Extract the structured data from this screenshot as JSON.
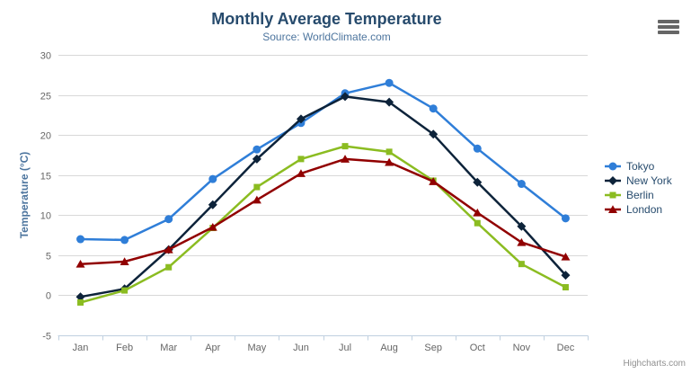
{
  "chart_data": {
    "type": "line",
    "title": "Monthly Average Temperature",
    "subtitle": "Source: WorldClimate.com",
    "categories": [
      "Jan",
      "Feb",
      "Mar",
      "Apr",
      "May",
      "Jun",
      "Jul",
      "Aug",
      "Sep",
      "Oct",
      "Nov",
      "Dec"
    ],
    "xlabel": "",
    "ylabel": "Temperature (°C)",
    "ylim": [
      -5,
      30
    ],
    "ytick_step": 5,
    "grid": "horizontal",
    "legend_position": "right-middle",
    "series": [
      {
        "name": "Tokyo",
        "color": "#2f7ed8",
        "marker": "circle",
        "values": [
          7.0,
          6.9,
          9.5,
          14.5,
          18.2,
          21.5,
          25.2,
          26.5,
          23.3,
          18.3,
          13.9,
          9.6
        ]
      },
      {
        "name": "New York",
        "color": "#0d233a",
        "marker": "diamond",
        "values": [
          -0.2,
          0.8,
          5.7,
          11.3,
          17.0,
          22.0,
          24.8,
          24.1,
          20.1,
          14.1,
          8.6,
          2.5
        ]
      },
      {
        "name": "Berlin",
        "color": "#8bbc21",
        "marker": "square",
        "values": [
          -0.9,
          0.6,
          3.5,
          8.4,
          13.5,
          17.0,
          18.6,
          17.9,
          14.3,
          9.0,
          3.9,
          1.0
        ]
      },
      {
        "name": "London",
        "color": "#910000",
        "marker": "triangle",
        "values": [
          3.9,
          4.2,
          5.7,
          8.5,
          11.9,
          15.2,
          17.0,
          16.6,
          14.2,
          10.3,
          6.6,
          4.8
        ]
      }
    ]
  },
  "credits": {
    "label": "Highcharts.com"
  },
  "menu_icon": "hamburger-export-menu",
  "colors": {
    "title": "#274b6d",
    "subtitle": "#4d759e",
    "axis_title": "#4d759e",
    "axis_label": "#666666",
    "grid_line": "#d8d8d8",
    "axis_line": "#c0d0e0",
    "legend_text": "#274b6d",
    "credits_text": "#909090",
    "menu_icon": "#666666",
    "background": "#ffffff"
  }
}
